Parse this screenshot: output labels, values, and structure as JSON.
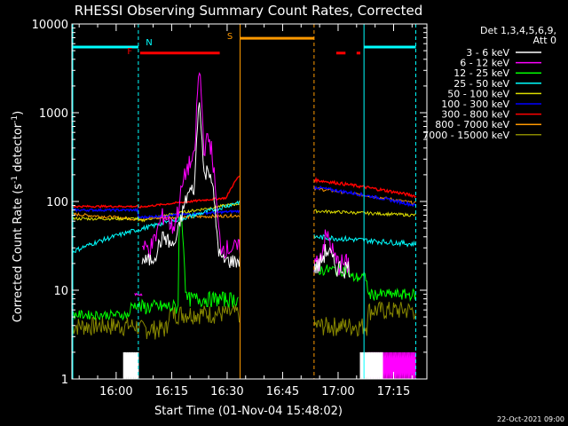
{
  "chart_data": {
    "type": "line",
    "title": "RHESSI Observing Summary Count Rates, Corrected",
    "xlabel": "Start Time (01-Nov-04 15:48:02)",
    "ylabel": "Corrected Count Rate (s",
    "ylabel_sup": "-1",
    "ylabel_mid": " detector",
    "ylabel_sup2": "-1",
    "ylabel_end": ")",
    "yscale": "log",
    "ylim": [
      1,
      10000
    ],
    "xlim": [
      "15:48:02",
      "17:24"
    ],
    "x_ticks": [
      "16:00",
      "16:15",
      "16:30",
      "16:45",
      "17:00",
      "17:15"
    ],
    "y_ticks": [
      "1",
      "10",
      "100",
      "1000",
      "10000"
    ],
    "grid": false,
    "legend_header": [
      "Det 1,3,4,5,6,9,",
      "Att 0"
    ],
    "legend_position": "right",
    "legend": [
      {
        "label": "3 - 6 keV",
        "color": "#ffffff"
      },
      {
        "label": "6 - 12 keV",
        "color": "#ff00ff"
      },
      {
        "label": "12 - 25 keV",
        "color": "#00ff00"
      },
      {
        "label": "25 - 50 keV",
        "color": "#00ffff"
      },
      {
        "label": "50 - 100 keV",
        "color": "#dddd00"
      },
      {
        "label": "100 - 300 keV",
        "color": "#0000ff"
      },
      {
        "label": "300 - 800 keV",
        "color": "#ff0000"
      },
      {
        "label": "800 - 7000 keV",
        "color": "#ff9900"
      },
      {
        "label": "7000 - 15000 keV",
        "color": "#888800"
      }
    ],
    "flag_labels": {
      "N": "N",
      "F": "F",
      "S": "S"
    },
    "timestamp": "22-Oct-2021 09:00"
  }
}
